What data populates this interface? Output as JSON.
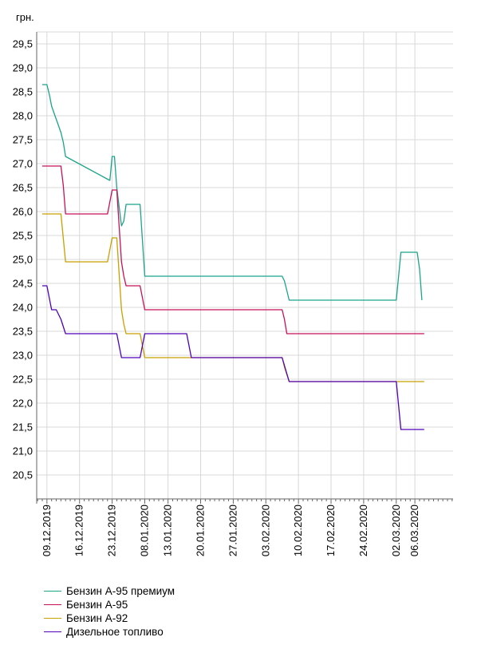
{
  "chart_data": {
    "type": "line",
    "unit_label": "грн.",
    "y_ticks": [
      "20,5",
      "21,0",
      "21,5",
      "22,0",
      "22,5",
      "23,0",
      "23,5",
      "24,0",
      "24,5",
      "25,0",
      "25,5",
      "26,0",
      "26,5",
      "27,0",
      "27,5",
      "28,0",
      "28,5",
      "29,0",
      "29,5"
    ],
    "y_tick_values": [
      20.5,
      21.0,
      21.5,
      22.0,
      22.5,
      23.0,
      23.5,
      24.0,
      24.5,
      25.0,
      25.5,
      26.0,
      26.5,
      27.0,
      27.5,
      28.0,
      28.5,
      29.0,
      29.5
    ],
    "ylim": [
      20.0,
      29.75
    ],
    "xlim": [
      -2.2,
      87.2
    ],
    "x_tick_labels": [
      "09.12.2019",
      "16.12.2019",
      "23.12.2019",
      "08.01.2020",
      "13.01.2020",
      "20.01.2020",
      "27.01.2020",
      "03.02.2020",
      "10.02.2020",
      "17.02.2020",
      "24.02.2020",
      "02.03.2020",
      "06.03.2020"
    ],
    "x_tick_positions": [
      0,
      7,
      14,
      21,
      26,
      33,
      40,
      47,
      54,
      61,
      68,
      75,
      79
    ],
    "series": [
      {
        "name": "Бензин А-95 премиум",
        "color": "#1aa58a",
        "x": [
          -1,
          0,
          0.5,
          1,
          3,
          3.5,
          4,
          13.5,
          14,
          14.5,
          15,
          16,
          16.5,
          17,
          17.5,
          20,
          21,
          50.5,
          51,
          51.5,
          52,
          75,
          75.5,
          76,
          79.5,
          80,
          80.5
        ],
        "y": [
          28.65,
          28.65,
          28.45,
          28.2,
          27.65,
          27.45,
          27.15,
          26.65,
          27.15,
          27.15,
          26.5,
          25.7,
          25.8,
          26.15,
          26.15,
          26.15,
          24.65,
          24.65,
          24.55,
          24.35,
          24.15,
          24.15,
          24.65,
          25.15,
          25.15,
          24.8,
          24.15
        ]
      },
      {
        "name": "Бензин А-95",
        "color": "#c8105a",
        "x": [
          -1,
          3,
          3.5,
          4,
          13,
          14,
          15,
          16,
          16.5,
          17,
          17.5,
          20,
          21,
          50.5,
          51,
          51.5,
          52,
          81
        ],
        "y": [
          26.95,
          26.95,
          26.55,
          25.95,
          25.95,
          26.45,
          26.45,
          24.95,
          24.65,
          24.45,
          24.45,
          24.45,
          23.95,
          23.95,
          23.75,
          23.45,
          23.45,
          23.45
        ]
      },
      {
        "name": "Бензин А-92",
        "color": "#c8a000",
        "x": [
          -1,
          3,
          3.5,
          4,
          13,
          14,
          15,
          16,
          16.5,
          17,
          17.5,
          20,
          21,
          50.5,
          51,
          52,
          75,
          75.5,
          81
        ],
        "y": [
          25.95,
          25.95,
          25.45,
          24.95,
          24.95,
          25.45,
          25.45,
          23.95,
          23.65,
          23.45,
          23.45,
          23.45,
          22.95,
          22.95,
          22.75,
          22.45,
          22.45,
          22.45,
          22.45
        ]
      },
      {
        "name": "Дизельное топливо",
        "color": "#5000b8",
        "x": [
          -1,
          0,
          1,
          2,
          3,
          4,
          15,
          16,
          20,
          21,
          30,
          31,
          50.5,
          52,
          75,
          76,
          81
        ],
        "y": [
          24.45,
          24.45,
          23.95,
          23.95,
          23.75,
          23.45,
          23.45,
          22.95,
          22.95,
          23.45,
          23.45,
          22.95,
          22.95,
          22.45,
          22.45,
          21.45,
          21.45
        ]
      }
    ]
  }
}
